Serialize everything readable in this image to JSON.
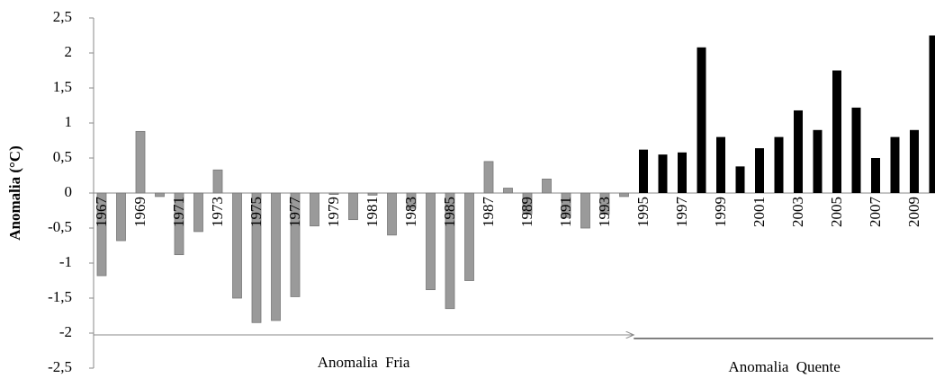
{
  "chart_data": {
    "type": "bar",
    "y_label": "Anomalia (°C)",
    "categories": [
      "1967",
      null,
      "1969",
      null,
      "1971",
      null,
      "1973",
      null,
      "1975",
      null,
      "1977",
      null,
      "1979",
      null,
      "1981",
      null,
      "1983",
      null,
      "1985",
      null,
      "1987",
      null,
      "1989",
      null,
      "1991",
      null,
      "1993",
      null,
      "1995",
      null,
      "1997",
      null,
      "1999",
      null,
      "2001",
      null,
      "2003",
      null,
      "2005",
      null,
      "2007",
      null,
      "2009",
      null
    ],
    "series": [
      {
        "name": "Anomalia Fria",
        "color": "#9a9a9a",
        "values": [
          -1.18,
          -0.68,
          0.88,
          -0.05,
          -0.88,
          -0.55,
          0.33,
          -1.5,
          -1.85,
          -1.82,
          -1.48,
          -0.47,
          -0.02,
          -0.38,
          -0.03,
          -0.6,
          -0.22,
          -1.38,
          -1.65,
          -1.25,
          0.45,
          0.07,
          -0.3,
          0.2,
          -0.35,
          -0.5,
          -0.3,
          -0.05,
          null,
          null,
          null,
          null,
          null,
          null,
          null,
          null,
          null,
          null,
          null,
          null,
          null,
          null,
          null,
          null
        ]
      },
      {
        "name": "Anomalia Quente",
        "color": "#000000",
        "values": [
          null,
          null,
          null,
          null,
          null,
          null,
          null,
          null,
          null,
          null,
          null,
          null,
          null,
          null,
          null,
          null,
          null,
          null,
          null,
          null,
          null,
          null,
          null,
          null,
          null,
          null,
          null,
          null,
          0.62,
          0.55,
          0.58,
          2.08,
          0.8,
          0.38,
          0.64,
          0.8,
          1.18,
          0.9,
          1.75,
          1.22,
          0.5,
          0.8,
          0.9,
          2.25
        ]
      }
    ],
    "ylim": [
      -2.5,
      2.5
    ],
    "yticks": [
      {
        "value": 2.5,
        "label": "2,5"
      },
      2,
      {
        "value": 1.5,
        "label": "1,5"
      },
      1,
      {
        "value": 0.5,
        "label": "0,5"
      },
      0,
      {
        "value": -0.5,
        "label": "-0,5"
      },
      -1,
      {
        "value": -1.5,
        "label": "-1,5"
      },
      -2,
      {
        "value": -2.5,
        "label": "-2,5"
      }
    ],
    "grid": false
  }
}
